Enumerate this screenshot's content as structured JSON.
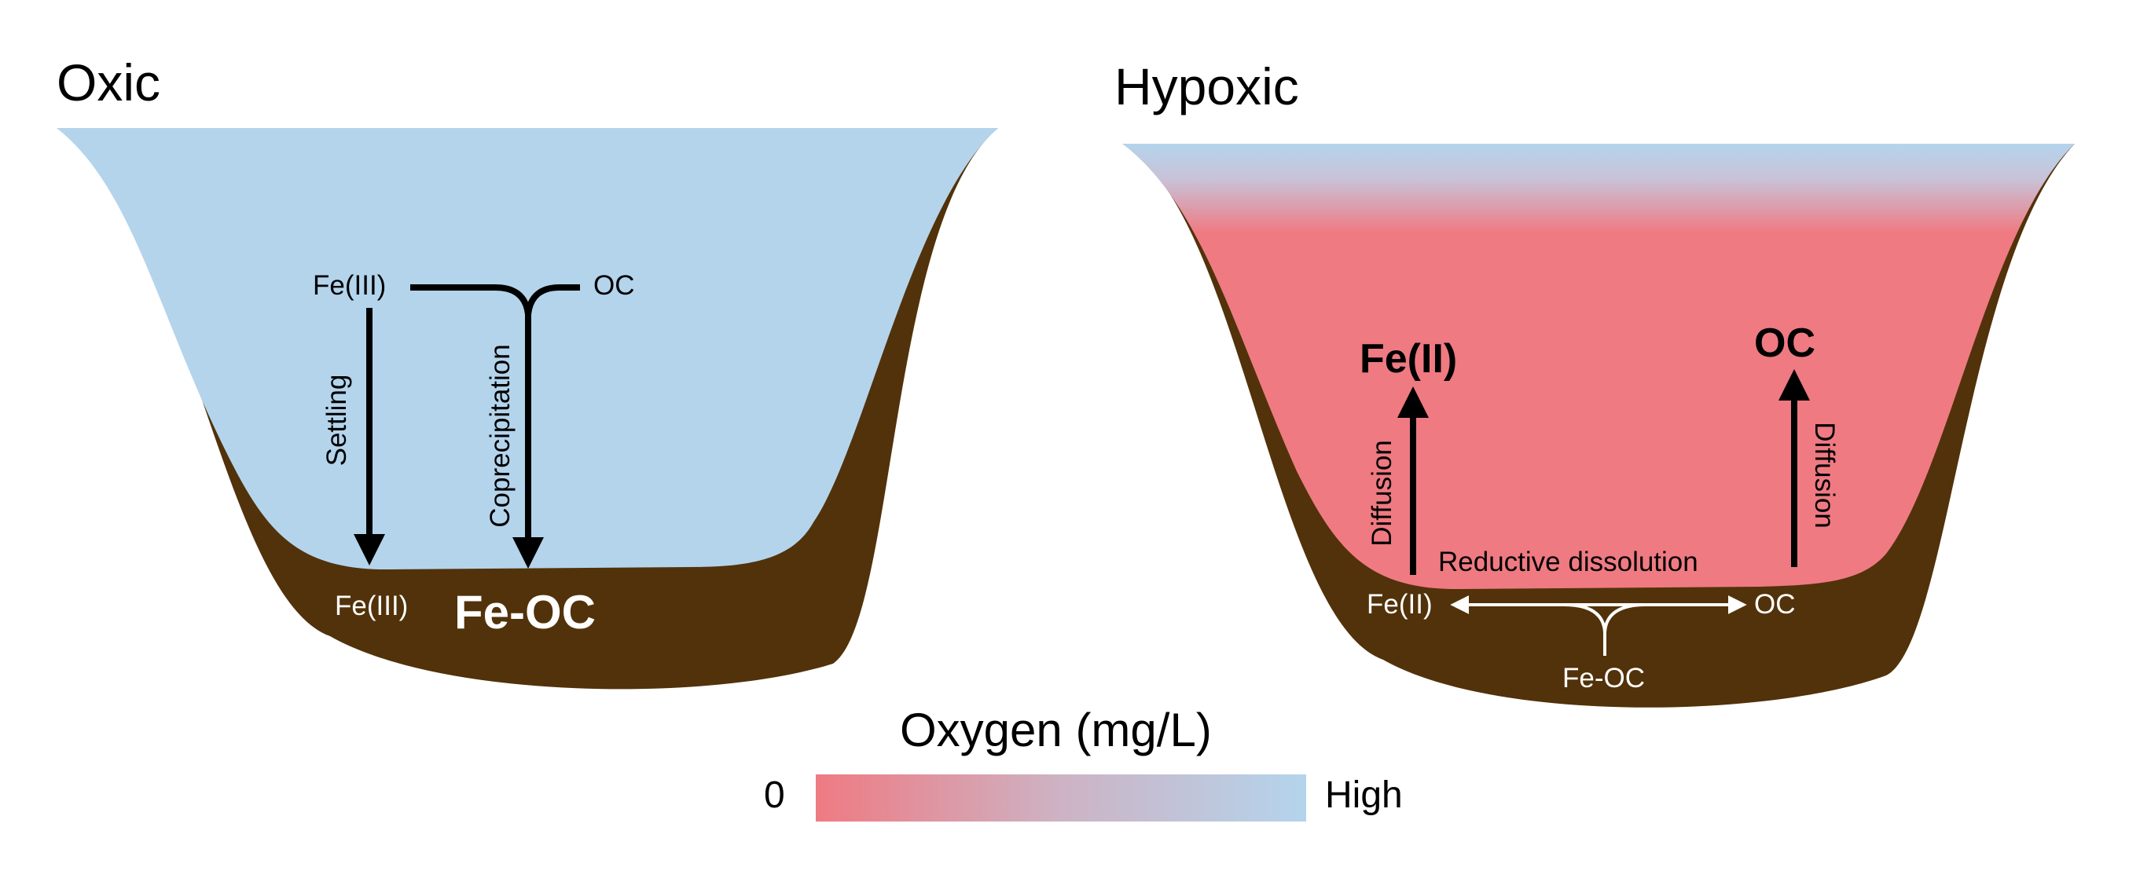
{
  "oxic": {
    "title": "Oxic",
    "fe3_top": "Fe(III)",
    "oc_top": "OC",
    "settling": "Settling",
    "coprecipitation": "Coprecipitation",
    "fe3_bottom": "Fe(III)",
    "feoc": "Fe-OC"
  },
  "hypoxic": {
    "title": "Hypoxic",
    "fe2_big": "Fe(II)",
    "oc_big": "OC",
    "diffusion_left": "Diffusion",
    "diffusion_right": "Diffusion",
    "reductive_dissolution": "Reductive dissolution",
    "fe2_small": "Fe(II)",
    "oc_small": "OC",
    "feoc_small": "Fe-OC"
  },
  "legend": {
    "title": "Oxygen (mg/L)",
    "low": "0",
    "high": "High"
  },
  "colors": {
    "sediment": "#52320A",
    "oxic_water": "#B4D4EC",
    "hypoxic_water": "#EF7A82",
    "arrow_dark": "#000000",
    "arrow_light": "#ffffff"
  }
}
